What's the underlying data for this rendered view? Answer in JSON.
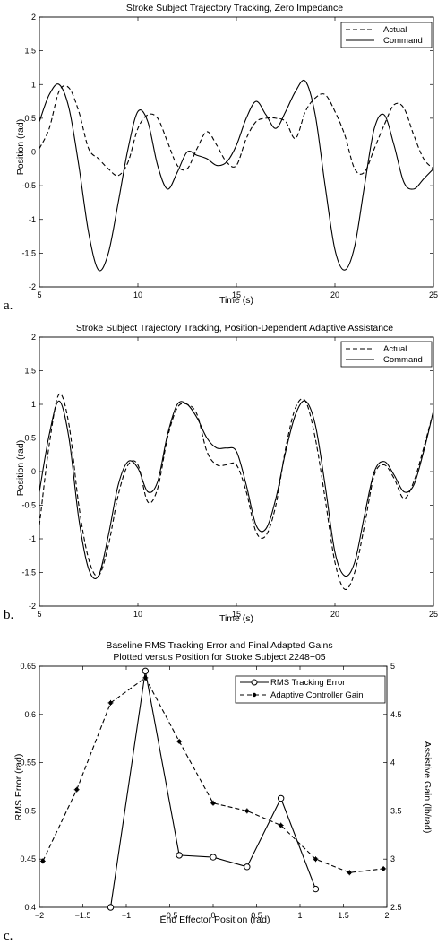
{
  "panel_labels": [
    "a.",
    "b.",
    "c."
  ],
  "chart_data": [
    {
      "type": "line",
      "title": "Stroke Subject Trajectory Tracking, Zero Impedance",
      "xlabel": "Time (s)",
      "ylabel": "Position (rad)",
      "xlim": [
        5,
        25
      ],
      "ylim": [
        -2,
        2
      ],
      "xticks": [
        5,
        10,
        15,
        20,
        25
      ],
      "yticks": [
        -2,
        -1.5,
        -1,
        -0.5,
        0,
        0.5,
        1,
        1.5,
        2
      ],
      "legend": "top-right",
      "series": [
        {
          "name": "Actual",
          "style": "dashed",
          "x": [
            5,
            5.5,
            6,
            6.5,
            7,
            7.5,
            8,
            8.5,
            9,
            9.5,
            10,
            10.5,
            11,
            11.5,
            12,
            12.5,
            13,
            13.5,
            14,
            14.5,
            15,
            15.5,
            16,
            16.5,
            17,
            17.5,
            18,
            18.5,
            19,
            19.5,
            20,
            20.5,
            21,
            21.5,
            22,
            22.5,
            23,
            23.5,
            24,
            24.5,
            25
          ],
          "y": [
            0.05,
            0.35,
            0.9,
            0.95,
            0.6,
            0.05,
            -0.1,
            -0.25,
            -0.35,
            -0.15,
            0.35,
            0.55,
            0.5,
            0.15,
            -0.2,
            -0.25,
            0.05,
            0.3,
            0.1,
            -0.15,
            -0.2,
            0.2,
            0.45,
            0.5,
            0.5,
            0.45,
            0.2,
            0.6,
            0.8,
            0.85,
            0.6,
            0.25,
            -0.25,
            -0.3,
            0.05,
            0.4,
            0.7,
            0.65,
            0.25,
            -0.1,
            -0.25
          ]
        },
        {
          "name": "Command",
          "style": "solid",
          "x": [
            5,
            5.5,
            6,
            6.5,
            7,
            7.5,
            8,
            8.5,
            9,
            9.5,
            10,
            10.5,
            11,
            11.5,
            12,
            12.5,
            13,
            13.5,
            14,
            14.5,
            15,
            15.5,
            16,
            16.5,
            17,
            17.5,
            18,
            18.5,
            19,
            19.5,
            20,
            20.5,
            21,
            21.5,
            22,
            22.5,
            23,
            23.5,
            24,
            24.5,
            25
          ],
          "y": [
            0.45,
            0.85,
            1.0,
            0.65,
            -0.2,
            -1.2,
            -1.75,
            -1.5,
            -0.75,
            0.05,
            0.6,
            0.45,
            -0.2,
            -0.55,
            -0.3,
            0,
            -0.05,
            -0.1,
            -0.2,
            -0.15,
            0.1,
            0.5,
            0.75,
            0.55,
            0.35,
            0.6,
            0.9,
            1.05,
            0.55,
            -0.5,
            -1.45,
            -1.75,
            -1.4,
            -0.5,
            0.35,
            0.55,
            0.1,
            -0.45,
            -0.55,
            -0.4,
            -0.25
          ]
        }
      ]
    },
    {
      "type": "line",
      "title": "Stroke Subject Trajectory Tracking, Position-Dependent Adaptive Assistance",
      "xlabel": "Time (s)",
      "ylabel": "Position (rad)",
      "xlim": [
        5,
        25
      ],
      "ylim": [
        -2,
        2
      ],
      "xticks": [
        5,
        10,
        15,
        20,
        25
      ],
      "yticks": [
        -2,
        -1.5,
        -1,
        -0.5,
        0,
        0.5,
        1,
        1.5,
        2
      ],
      "legend": "top-right",
      "series": [
        {
          "name": "Actual",
          "style": "dashed",
          "x": [
            5,
            5.5,
            6,
            6.5,
            7,
            7.5,
            8,
            8.5,
            9,
            9.5,
            10,
            10.5,
            11,
            11.5,
            12,
            12.5,
            13,
            13.5,
            14,
            14.5,
            15,
            15.5,
            16,
            16.5,
            17,
            17.5,
            18,
            18.5,
            19,
            19.5,
            20,
            20.5,
            21,
            21.5,
            22,
            22.5,
            23,
            23.5,
            24,
            24.5,
            25
          ],
          "y": [
            -0.8,
            0.4,
            1.15,
            0.7,
            -0.5,
            -1.3,
            -1.55,
            -1.1,
            -0.35,
            0.1,
            0.1,
            -0.45,
            -0.25,
            0.5,
            0.95,
            1.0,
            0.85,
            0.3,
            0.1,
            0.1,
            0.1,
            -0.3,
            -0.9,
            -0.95,
            -0.5,
            0.35,
            0.95,
            1.05,
            0.5,
            -0.4,
            -1.35,
            -1.75,
            -1.5,
            -0.8,
            -0.05,
            0.1,
            -0.1,
            -0.4,
            -0.15,
            0.35,
            0.9
          ]
        },
        {
          "name": "Command",
          "style": "solid",
          "x": [
            5,
            5.5,
            6,
            6.5,
            7,
            7.5,
            8,
            8.5,
            9,
            9.5,
            10,
            10.5,
            11,
            11.5,
            12,
            12.5,
            13,
            13.5,
            14,
            14.5,
            15,
            15.5,
            16,
            16.5,
            17,
            17.5,
            18,
            18.5,
            19,
            19.5,
            20,
            20.5,
            21,
            21.5,
            22,
            22.5,
            23,
            23.5,
            24,
            24.5,
            25
          ],
          "y": [
            -0.3,
            0.55,
            1.05,
            0.5,
            -0.7,
            -1.45,
            -1.55,
            -0.95,
            -0.2,
            0.15,
            0.05,
            -0.3,
            -0.15,
            0.55,
            1.0,
            1.0,
            0.8,
            0.5,
            0.35,
            0.35,
            0.3,
            -0.2,
            -0.8,
            -0.85,
            -0.4,
            0.3,
            0.85,
            1.05,
            0.7,
            -0.2,
            -1.2,
            -1.55,
            -1.35,
            -0.65,
            0,
            0.15,
            -0.05,
            -0.3,
            -0.2,
            0.3,
            0.9
          ]
        }
      ]
    },
    {
      "type": "line",
      "title": "Baseline RMS Tracking Error and Final Adapted Gains",
      "subtitle": "Plotted versus Position for Stroke Subject 2248−05",
      "xlabel": "End Effector Position (rad)",
      "ylabel": "RMS Error (rad)",
      "ylabel_right": "Assistive Gain (lb/rad)",
      "xlim": [
        -2,
        2
      ],
      "ylim": [
        0.4,
        0.65
      ],
      "ylim_right": [
        2.5,
        5
      ],
      "xticks": [
        -2,
        -1.5,
        -1,
        -0.5,
        0,
        0.5,
        1,
        1.5,
        2
      ],
      "xtick_labels": [
        "−2",
        "−1.5",
        "−1",
        "−0.5",
        "0",
        "0.5",
        "1",
        "1.5",
        "2"
      ],
      "yticks": [
        0.4,
        0.45,
        0.5,
        0.55,
        0.6,
        0.65
      ],
      "ytick_labels": [
        "0.4",
        "0.45",
        "0.5",
        "0.55",
        "0.6",
        "0.65"
      ],
      "yticks_right": [
        2.5,
        3,
        3.5,
        4,
        4.5,
        5
      ],
      "ytick_labels_right": [
        "2.5",
        "3",
        "3.5",
        "4",
        "4.5",
        "5"
      ],
      "legend": "top-right",
      "series": [
        {
          "name": "RMS Tracking Error",
          "style": "solid",
          "marker": "circle",
          "axis": "left",
          "x": [
            -1.18,
            -0.78,
            -0.39,
            0,
            0.39,
            0.78,
            1.18
          ],
          "y": [
            0.4,
            0.645,
            0.454,
            0.452,
            0.442,
            0.513,
            0.419
          ]
        },
        {
          "name": "Adaptive Controller Gain",
          "style": "dashed",
          "marker": "star",
          "axis": "right",
          "x": [
            -1.96,
            -1.57,
            -1.18,
            -0.78,
            -0.39,
            0,
            0.39,
            0.78,
            1.18,
            1.57,
            1.96
          ],
          "y": [
            2.98,
            3.72,
            4.62,
            4.88,
            4.22,
            3.58,
            3.5,
            3.35,
            3.0,
            2.86,
            2.9
          ]
        }
      ]
    }
  ]
}
